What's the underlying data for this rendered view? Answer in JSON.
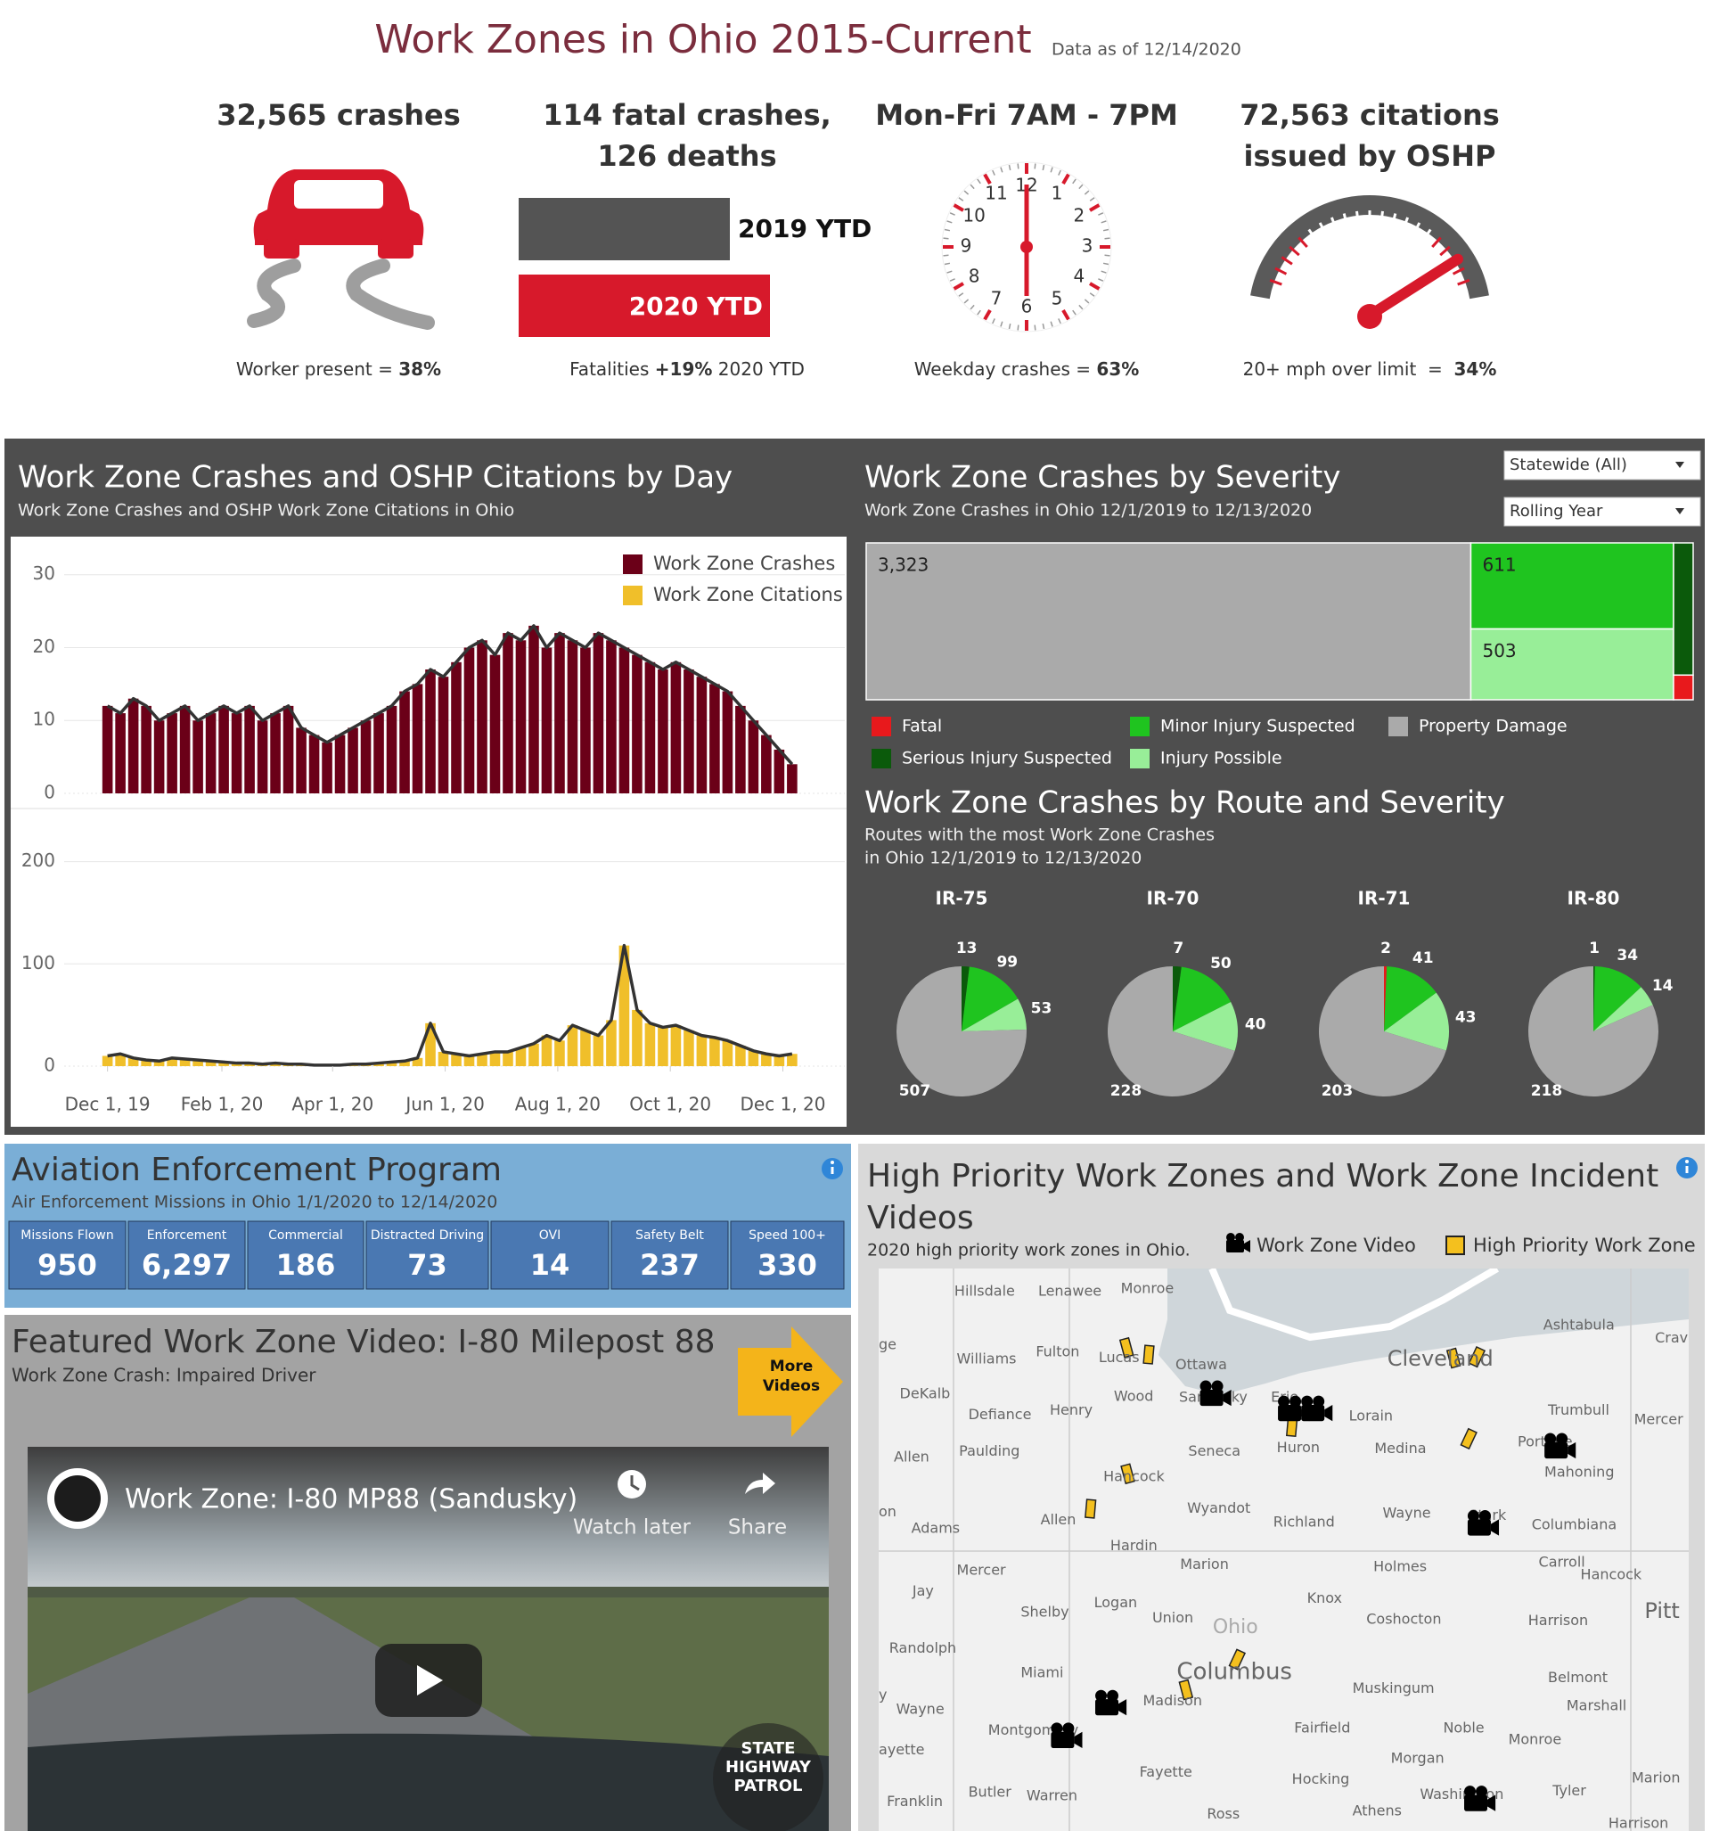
{
  "header": {
    "title": "Work Zones in Ohio 2015-Current",
    "as_of": "Data as of 12/14/2020"
  },
  "kpis": [
    {
      "heading": [
        "32,565 crashes"
      ],
      "footer": {
        "before": "Worker present = ",
        "bold": "38%"
      }
    },
    {
      "heading": [
        "114 fatal crashes,",
        "126 deaths"
      ],
      "bars": [
        "2019 YTD",
        "2020 YTD"
      ],
      "footer": {
        "before": "Fatalities ",
        "bold": "+19%",
        "after": " 2020 YTD"
      }
    },
    {
      "heading": [
        "Mon-Fri 7AM - 7PM"
      ],
      "clock_numbers": [
        12,
        1,
        2,
        3,
        4,
        5,
        6,
        7,
        8,
        9,
        10,
        11
      ],
      "footer": {
        "before": "Weekday crashes = ",
        "bold": "63%"
      }
    },
    {
      "heading": [
        "72,563 citations",
        "issued by OSHP"
      ],
      "footer": {
        "before": "20+ mph over limit  =  ",
        "bold": "34%"
      }
    }
  ],
  "filters": [
    "Statewide (All)",
    "Rolling Year"
  ],
  "route_section": {
    "title": "Work Zone Crashes by Route and Severity",
    "subtitle": [
      "Routes with the most Work Zone Crashes",
      "in Ohio 12/1/2019 to 12/13/2020"
    ]
  },
  "chart_data": [
    {
      "type": "bar",
      "title": "Work Zone Crashes and OSHP Citations by Day",
      "subtitle": "Work Zone Crashes and OSHP Work Zone Citations in Ohio",
      "x": [
        "2019-12-01",
        "2019-12-08",
        "2019-12-15",
        "2019-12-22",
        "2019-12-29",
        "2020-01-05",
        "2020-01-12",
        "2020-01-19",
        "2020-01-26",
        "2020-02-02",
        "2020-02-09",
        "2020-02-16",
        "2020-02-23",
        "2020-03-01",
        "2020-03-08",
        "2020-03-15",
        "2020-03-22",
        "2020-03-29",
        "2020-04-05",
        "2020-04-12",
        "2020-04-19",
        "2020-04-26",
        "2020-05-03",
        "2020-05-10",
        "2020-05-17",
        "2020-05-24",
        "2020-05-31",
        "2020-06-07",
        "2020-06-14",
        "2020-06-21",
        "2020-06-28",
        "2020-07-05",
        "2020-07-12",
        "2020-07-19",
        "2020-07-26",
        "2020-08-02",
        "2020-08-09",
        "2020-08-16",
        "2020-08-23",
        "2020-08-30",
        "2020-09-06",
        "2020-09-13",
        "2020-09-20",
        "2020-09-27",
        "2020-10-04",
        "2020-10-11",
        "2020-10-18",
        "2020-10-25",
        "2020-11-01",
        "2020-11-08",
        "2020-11-15",
        "2020-11-22",
        "2020-11-29",
        "2020-12-06"
      ],
      "series": [
        {
          "name": "Work Zone Crashes",
          "color": "#6b0018",
          "line_color": "#333333",
          "values": [
            12,
            11,
            13,
            12,
            10,
            11,
            12,
            10,
            11,
            12,
            11,
            12,
            10,
            11,
            12,
            9,
            8,
            7,
            8,
            9,
            10,
            11,
            12,
            14,
            15,
            17,
            16,
            18,
            20,
            21,
            19,
            22,
            21,
            23,
            20,
            22,
            21,
            20,
            22,
            21,
            20,
            19,
            18,
            17,
            18,
            17,
            16,
            15,
            14,
            12,
            10,
            8,
            6,
            4
          ]
        }
      ],
      "xlim": [
        "2019-11-22",
        "2020-12-22"
      ],
      "ylim": [
        0,
        34
      ],
      "yticks": [
        0,
        10,
        20,
        30
      ],
      "grid": true,
      "legend": "top-right"
    },
    {
      "type": "bar",
      "x": [
        "2019-12-01",
        "2019-12-08",
        "2019-12-15",
        "2019-12-22",
        "2019-12-29",
        "2020-01-05",
        "2020-01-12",
        "2020-01-19",
        "2020-01-26",
        "2020-02-02",
        "2020-02-09",
        "2020-02-16",
        "2020-02-23",
        "2020-03-01",
        "2020-03-08",
        "2020-03-15",
        "2020-03-22",
        "2020-03-29",
        "2020-04-05",
        "2020-04-12",
        "2020-04-19",
        "2020-04-26",
        "2020-05-03",
        "2020-05-10",
        "2020-05-17",
        "2020-05-24",
        "2020-05-31",
        "2020-06-07",
        "2020-06-14",
        "2020-06-21",
        "2020-06-28",
        "2020-07-05",
        "2020-07-12",
        "2020-07-19",
        "2020-07-26",
        "2020-08-02",
        "2020-08-09",
        "2020-08-16",
        "2020-08-23",
        "2020-08-30",
        "2020-09-06",
        "2020-09-13",
        "2020-09-20",
        "2020-09-27",
        "2020-10-04",
        "2020-10-11",
        "2020-10-18",
        "2020-10-25",
        "2020-11-01",
        "2020-11-08",
        "2020-11-15",
        "2020-11-22",
        "2020-11-29",
        "2020-12-06"
      ],
      "series": [
        {
          "name": "Work Zone Citations",
          "color": "#f0bf2a",
          "line_color": "#333333",
          "values": [
            10,
            12,
            8,
            6,
            5,
            8,
            7,
            6,
            5,
            4,
            3,
            3,
            2,
            3,
            2,
            2,
            1,
            1,
            1,
            2,
            2,
            3,
            4,
            5,
            8,
            42,
            14,
            12,
            10,
            12,
            14,
            14,
            18,
            22,
            30,
            25,
            40,
            35,
            30,
            45,
            118,
            55,
            42,
            38,
            40,
            35,
            30,
            28,
            25,
            20,
            15,
            12,
            10,
            12
          ]
        }
      ],
      "xlim": [
        "2019-11-22",
        "2020-12-22"
      ],
      "ylim": [
        0,
        245
      ],
      "yticks": [
        0,
        100,
        200
      ],
      "grid": true,
      "xticks": [
        {
          "value": "2019-12-01",
          "label": "Dec 1, 19"
        },
        {
          "value": "2020-02-01",
          "label": "Feb 1, 20"
        },
        {
          "value": "2020-04-01",
          "label": "Apr 1, 20"
        },
        {
          "value": "2020-06-01",
          "label": "Jun 1, 20"
        },
        {
          "value": "2020-08-01",
          "label": "Aug 1, 20"
        },
        {
          "value": "2020-10-01",
          "label": "Oct 1, 20"
        },
        {
          "value": "2020-12-01",
          "label": "Dec 1, 20"
        }
      ]
    },
    {
      "type": "treemap",
      "title": "Work Zone Crashes by Severity",
      "subtitle": "Work Zone Crashes in Ohio 12/1/2019 to 12/13/2020",
      "categories": [
        "Fatal",
        "Serious Injury Suspected",
        "Minor Injury Suspected",
        "Injury Possible",
        "Property Damage"
      ],
      "colors": [
        "#e8191c",
        "#0b5a0b",
        "#1fc41f",
        "#98ee98",
        "#aaaaaa"
      ],
      "values": [
        17,
        91,
        611,
        503,
        3323
      ],
      "value_labels": [
        null,
        null,
        "611",
        "503",
        "3,323"
      ]
    },
    {
      "type": "pie",
      "title": "IR-75",
      "colors": [
        "#e8191c",
        "#0b5a0b",
        "#1fc41f",
        "#98ee98",
        "#aaaaaa"
      ],
      "values": [
        null,
        13,
        99,
        53,
        507
      ]
    },
    {
      "type": "pie",
      "title": "IR-70",
      "colors": [
        "#e8191c",
        "#0b5a0b",
        "#1fc41f",
        "#98ee98",
        "#aaaaaa"
      ],
      "values": [
        null,
        7,
        50,
        40,
        228
      ]
    },
    {
      "type": "pie",
      "title": "IR-71",
      "colors": [
        "#e8191c",
        "#0b5a0b",
        "#1fc41f",
        "#98ee98",
        "#aaaaaa"
      ],
      "values": [
        2,
        null,
        41,
        43,
        203
      ]
    },
    {
      "type": "pie",
      "title": "IR-80",
      "colors": [
        "#e8191c",
        "#0b5a0b",
        "#1fc41f",
        "#98ee98",
        "#aaaaaa"
      ],
      "values": [
        null,
        1,
        34,
        14,
        218
      ]
    }
  ],
  "aviation": {
    "title": "Aviation Enforcement Program",
    "subtitle": "Air Enforcement Missions in Ohio 1/1/2020 to 12/14/2020",
    "columns": [
      {
        "label": "Missions Flown",
        "value": "950"
      },
      {
        "label": "Enforcement",
        "value": "6,297"
      },
      {
        "label": "Commercial",
        "value": "186"
      },
      {
        "label": "Distracted Driving",
        "value": "73"
      },
      {
        "label": "OVI",
        "value": "14"
      },
      {
        "label": "Safety Belt",
        "value": "237"
      },
      {
        "label": "Speed 100+",
        "value": "330"
      }
    ]
  },
  "video": {
    "title": "Featured Work Zone Video: I-80 Milepost 88",
    "subtitle": "Work Zone Crash: Impaired Driver",
    "button": [
      "More",
      "Videos"
    ],
    "video_title": "Work Zone: I-80 MP88 (Sandusky)",
    "watch_later": "Watch later",
    "share": "Share",
    "logo": [
      "STATE",
      "HIGHWAY",
      "PATROL"
    ]
  },
  "map": {
    "title": [
      "High Priority Work Zones and Work Zone Incident",
      "Videos"
    ],
    "subtitle": "2020 high priority work zones in Ohio.",
    "legend": [
      "Work Zone Video",
      "High Priority Work Zone"
    ],
    "labels": [
      "Hillsdale",
      "Lenawee",
      "Monroe",
      "Ashtabula",
      "Crav",
      "ge",
      "Williams",
      "Fulton",
      "Lucas",
      "Ottawa",
      "Cleveland",
      "DeKalb",
      "Wood",
      "Sandusky",
      "Erie",
      "Henry",
      "Defiance",
      "Lorain",
      "Trumbull",
      "Mercer",
      "Huron",
      "Medina",
      "Portage",
      "Seneca",
      "Allen",
      "Paulding",
      "Mahoning",
      "Hancock",
      "on",
      "Wyandot",
      "Wayne",
      "Stark",
      "Allen",
      "Adams",
      "Richland",
      "Columbiana",
      "Hardin",
      "Marion",
      "Holmes",
      "Carroll",
      "Mercer",
      "Hancock",
      "Jay",
      "Knox",
      "Pitt",
      "Logan",
      "Shelby",
      "Union",
      "Coshocton",
      "Harrison",
      "Ohio",
      "Randolph",
      "Columbus",
      "Miami",
      "Belmont",
      "y",
      "Madison",
      "Muskingum",
      "Wayne",
      "Marshall",
      "Montgomery",
      "Fairfield",
      "Noble",
      "Monroe",
      "ayette",
      "Morgan",
      "Fayette",
      "Marion",
      "Hocking",
      "Butler",
      "Warren",
      "Washington",
      "Tyler",
      "Franklin",
      "Ross",
      "Athens",
      "Harrison"
    ]
  }
}
